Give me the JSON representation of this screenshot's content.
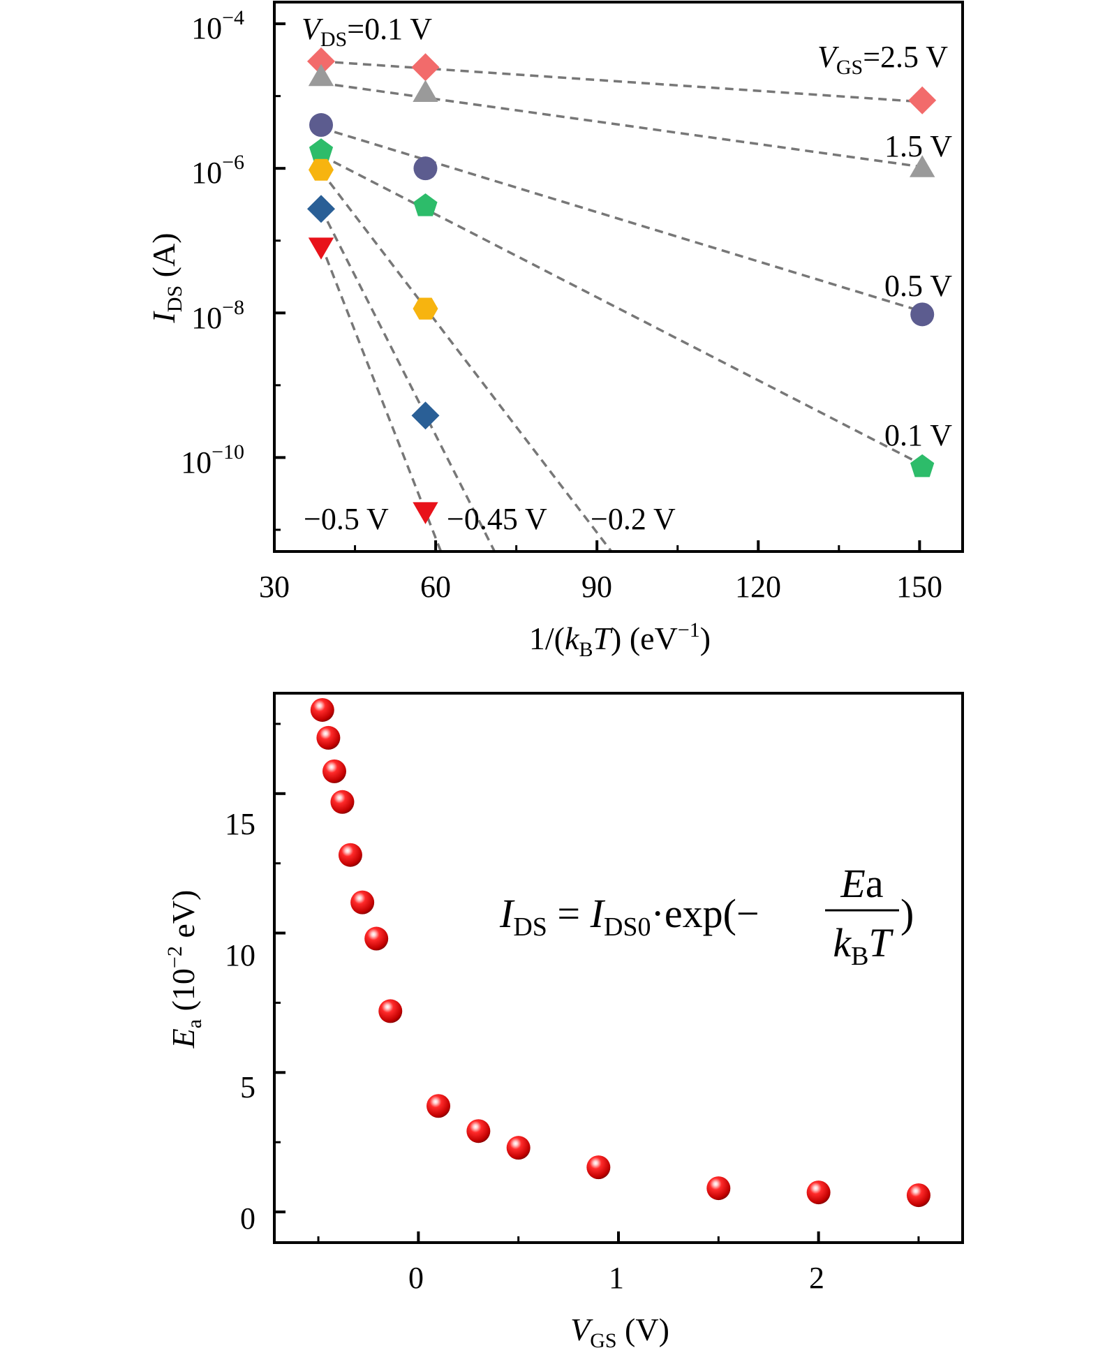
{
  "chart_data": [
    {
      "type": "scatter",
      "scale": {
        "y": "log"
      },
      "xlim": [
        30,
        158
      ],
      "ylim_log10": [
        -11.3,
        -3.7
      ],
      "xticks": [
        "30",
        "60",
        "90",
        "120",
        "150"
      ],
      "xtick_values": [
        30,
        60,
        90,
        120,
        150
      ],
      "yticks": [
        {
          "exp": -4,
          "base": "10",
          "sup": "−4"
        },
        {
          "exp": -6,
          "base": "10",
          "sup": "−6"
        },
        {
          "exp": -8,
          "base": "10",
          "sup": "−8"
        },
        {
          "exp": -10,
          "base": "10",
          "sup": "−10"
        }
      ],
      "xlabel": {
        "pre": "1/(",
        "italic": "k",
        "sub": "B",
        "italic2": "T",
        "post": ") (eV",
        "sup": "−1",
        "end": ")"
      },
      "ylabel": {
        "italic": "I",
        "sub": "DS",
        "post": " (A)"
      },
      "x": [
        38.7,
        58.1,
        150.5
      ],
      "series": [
        {
          "name": "2.5 V",
          "marker": "diamond",
          "color": "#f26b6b",
          "log10_values": [
            -4.52,
            -4.6,
            -5.06
          ],
          "fit_log10": [
            -4.52,
            -4.62,
            -5.08
          ]
        },
        {
          "name": "1.5 V",
          "marker": "triangle-up",
          "color": "#9a9a9a",
          "log10_values": [
            -4.76,
            -4.98,
            -6.02
          ],
          "fit_log10": [
            -4.82,
            -4.96,
            -5.98
          ]
        },
        {
          "name": "0.5 V",
          "marker": "circle",
          "color": "#5c5c8f",
          "log10_values": [
            -5.4,
            -6.0,
            -8.02
          ],
          "fit_log10": [
            -5.44,
            -5.89,
            -7.98
          ]
        },
        {
          "name": "0.1 V",
          "marker": "pentagon",
          "color": "#2dbc6a",
          "log10_values": [
            -5.76,
            -6.52,
            -10.13
          ],
          "fit_log10": [
            -5.82,
            -6.36,
            -10.1
          ]
        },
        {
          "name": "-0.2 V",
          "marker": "hexagon",
          "color": "#f7b40f",
          "log10_values": [
            -6.02,
            -7.94
          ],
          "fit_log10": [
            -6.04,
            -7.93
          ]
        },
        {
          "name": "-0.45 V",
          "marker": "diamond",
          "color": "#2a5f96",
          "log10_values": [
            -6.56,
            -9.42
          ],
          "fit_log10": [
            -6.56,
            -9.41
          ]
        },
        {
          "name": "-0.5 V",
          "marker": "triangle-down",
          "color": "#e8121a",
          "log10_values": [
            -7.06,
            -10.72
          ],
          "fit_log10": [
            -7.05,
            -10.75
          ]
        }
      ],
      "annotations": [
        {
          "italic": "V",
          "sub": "DS",
          "text": "=0.1 V"
        },
        {
          "italic": "V",
          "sub": "GS",
          "text": "=2.5 V"
        },
        {
          "text": "1.5 V"
        },
        {
          "text": "0.5 V"
        },
        {
          "text": "0.1 V"
        },
        {
          "text": "−0.5 V"
        },
        {
          "text": "−0.45 V"
        },
        {
          "text": "−0.2 V"
        }
      ],
      "grid": false
    },
    {
      "type": "scatter",
      "xlim": [
        -0.72,
        2.72
      ],
      "ylim": [
        -1.1,
        18.6
      ],
      "xticks": [
        "0",
        "1",
        "2"
      ],
      "xtick_values": [
        0,
        1,
        2
      ],
      "yticks": [
        "0",
        "5",
        "10",
        "15"
      ],
      "ytick_values": [
        0,
        5,
        10,
        15
      ],
      "xlabel": {
        "italic": "V",
        "sub": "GS",
        "post": " (V)"
      },
      "ylabel": {
        "italic": "E",
        "sub": "a",
        "post": " (10",
        "sup": "−2",
        "end": " eV)"
      },
      "marker": "sphere",
      "color": "#e8121a",
      "x": [
        -0.48,
        -0.45,
        -0.42,
        -0.38,
        -0.34,
        -0.28,
        -0.21,
        -0.14,
        0.1,
        0.3,
        0.5,
        0.9,
        1.5,
        2.0,
        2.5
      ],
      "y": [
        18.0,
        17.0,
        15.8,
        14.7,
        12.8,
        11.1,
        9.8,
        7.2,
        3.8,
        2.9,
        2.3,
        1.6,
        0.85,
        0.7,
        0.6
      ],
      "equation": {
        "lhs_italic": "I",
        "lhs_sub": "DS",
        "eq": " = ",
        "rhs_italic": "I",
        "rhs_sub": "DS0",
        "dot": "·",
        "func": "exp(−",
        "num_italic": "E",
        "num_sub": "a",
        "den_italic": "k",
        "den_sub": "B",
        "den_italic2": "T",
        "close": ")"
      },
      "grid": false
    }
  ]
}
